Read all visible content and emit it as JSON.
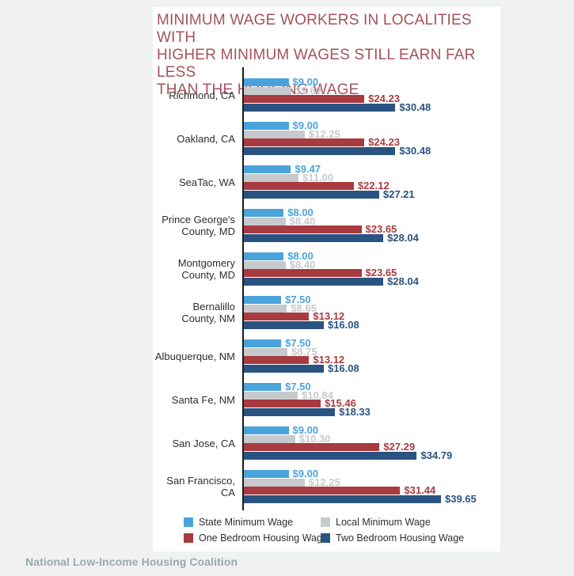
{
  "title": "MINIMUM WAGE WORKERS IN LOCALITIES WITH\nHIGHER MINIMUM WAGES STILL EARN FAR LESS\nTHAN THE HOUSING WAGE",
  "footer": "National Low-Income Housing Coalition",
  "colors": {
    "state_minimum": "#4BA3DC",
    "local_minimum": "#C7CACD",
    "one_bedroom": "#A83B40",
    "two_bedroom": "#2A5381",
    "title_text": "#A5525B",
    "axis_line": "#1C1C1C",
    "category_text": "#2E2E2E",
    "legend_text": "#2E2E2E",
    "footer_text": "#9AA9AC",
    "page_background": "#F0F2F1",
    "panel_background": "#FFFFFF"
  },
  "legend": {
    "position": "bottom",
    "items": [
      {
        "label": "State Minimum Wage",
        "color_key": "state_minimum"
      },
      {
        "label": "Local Minimum Wage",
        "color_key": "local_minimum"
      },
      {
        "label": "One Bedroom Housing Wage",
        "color_key": "one_bedroom"
      },
      {
        "label": "Two Bedroom Housing Wage",
        "color_key": "two_bedroom"
      }
    ]
  },
  "chart_data": {
    "type": "bar",
    "orientation": "horizontal",
    "title": "MINIMUM WAGE WORKERS IN LOCALITIES WITH HIGHER MINIMUM WAGES STILL EARN FAR LESS THAN THE HOUSING WAGE",
    "categories": [
      "Richmond, CA",
      "Oakland, CA",
      "SeaTac, WA",
      "Prince George's\nCounty, MD",
      "Montgomery\nCounty, MD",
      "Bernalillo\nCounty, NM",
      "Albuquerque, NM",
      "Santa Fe, NM",
      "San Jose, CA",
      "San Francisco, CA"
    ],
    "series": [
      {
        "name": "State Minimum Wage",
        "color_key": "state_minimum",
        "values": [
          9.0,
          9.0,
          9.47,
          8.0,
          8.0,
          7.5,
          7.5,
          7.5,
          9.0,
          9.0
        ]
      },
      {
        "name": "Local Minimum Wage",
        "color_key": "local_minimum",
        "values": [
          9.6,
          12.25,
          11.0,
          8.4,
          8.4,
          8.65,
          8.75,
          10.84,
          10.3,
          12.25
        ]
      },
      {
        "name": "One Bedroom Housing Wage",
        "color_key": "one_bedroom",
        "values": [
          24.23,
          24.23,
          22.12,
          23.65,
          23.65,
          13.12,
          13.12,
          15.46,
          27.29,
          31.44
        ]
      },
      {
        "name": "Two Bedroom Housing Wage",
        "color_key": "two_bedroom",
        "values": [
          30.48,
          30.48,
          27.21,
          28.04,
          28.04,
          16.08,
          16.08,
          18.33,
          34.79,
          39.65
        ]
      }
    ],
    "value_prefix": "$",
    "value_decimals": 2,
    "xlim": [
      0,
      51.5
    ],
    "grid": false,
    "legend_position": "bottom"
  }
}
